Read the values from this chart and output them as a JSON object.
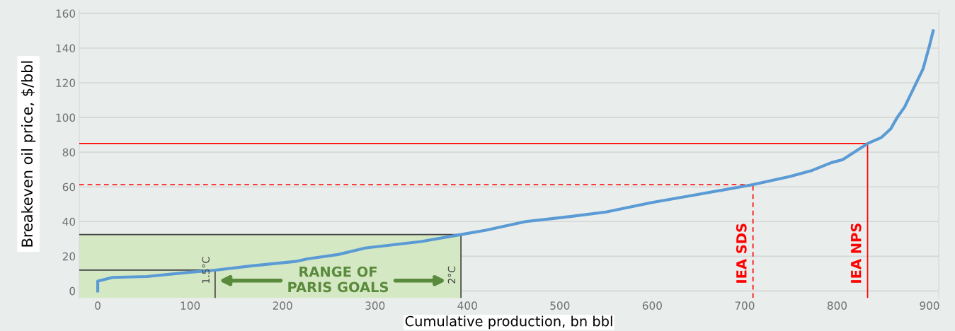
{
  "chart_data": {
    "type": "line",
    "xlabel": "Cumulative production, bn bbl",
    "ylabel": "Breakeven oil price, $/bbl",
    "series": [
      {
        "color": "#5b9bd5",
        "x": [
          0,
          0,
          16,
          53,
          100,
          127,
          165,
          214,
          227,
          260,
          289,
          350,
          393,
          420,
          463,
          513,
          550,
          585,
          600,
          649,
          709,
          749,
          773,
          794,
          806,
          833,
          848,
          858,
          865,
          873,
          883,
          893,
          900,
          904
        ],
        "values": [
          0,
          5.7,
          7.8,
          8.3,
          10.8,
          12,
          14.4,
          17,
          18.5,
          21,
          24.7,
          28.5,
          32.5,
          35,
          40,
          43,
          45.5,
          49.4,
          51,
          55.6,
          61.3,
          66,
          69.5,
          74,
          75.7,
          85,
          88.5,
          93.4,
          100,
          106,
          117,
          128,
          141.5,
          150
        ]
      }
    ],
    "xlim": [
      -20,
      910
    ],
    "ylim": [
      -4,
      162
    ],
    "xticks": [
      0,
      100,
      200,
      300,
      400,
      500,
      600,
      700,
      800,
      900
    ],
    "yticks": [
      0,
      20,
      40,
      60,
      80,
      100,
      120,
      140,
      160
    ],
    "grid": "y",
    "ref_lines": [
      {
        "axis": "y",
        "value": 85,
        "color": "#ff0000",
        "line_style": "solid"
      },
      {
        "axis": "x",
        "value": 833,
        "label": "IEA NPS",
        "color": "#ff0000",
        "line_style": "solid"
      },
      {
        "axis": "y",
        "value": 61.3,
        "color": "#ff0000",
        "line_style": "dashed"
      },
      {
        "axis": "x",
        "value": 709,
        "label": "IEA SDS",
        "color": "#ff0000",
        "line_style": "dashed"
      },
      {
        "axis": "y",
        "value": 12,
        "color": "#404040",
        "line_style": "solid"
      },
      {
        "axis": "x",
        "value": 127,
        "label": "1.5°C",
        "color": "#404040",
        "line_style": "solid"
      },
      {
        "axis": "y",
        "value": 32.5,
        "color": "#404040",
        "line_style": "solid"
      },
      {
        "axis": "x",
        "value": 393,
        "label": "2°C",
        "color": "#404040",
        "line_style": "solid"
      }
    ],
    "bands": [
      {
        "axis": "x",
        "from": -20,
        "to": 393,
        "color": "#d5e8c4"
      }
    ],
    "annotations": [
      "RANGE OF\nPARIS GOALS"
    ]
  }
}
